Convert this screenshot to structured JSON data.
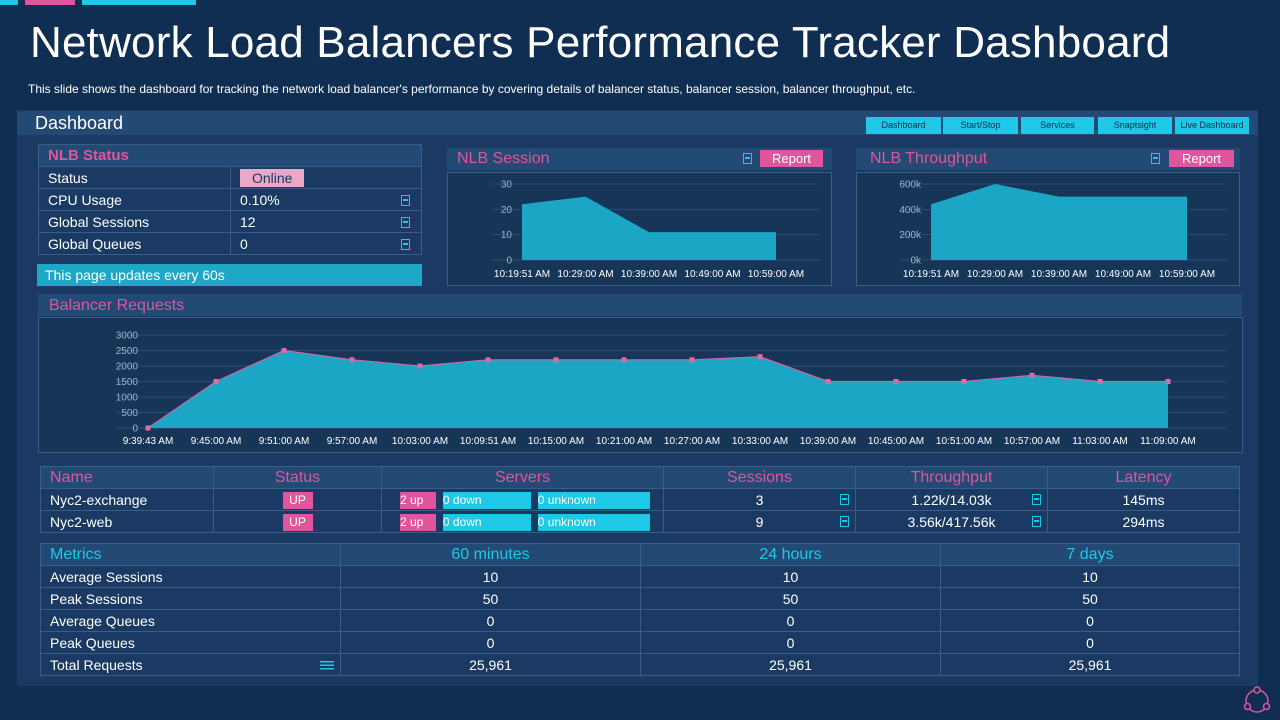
{
  "title": "Network Load Balancers Performance Tracker Dashboard",
  "subtitle": "This slide shows the dashboard for tracking the network load balancer's performance  by covering details of balancer status, balancer session, balancer throughput, etc.",
  "colors": {
    "background": "#0f2e52",
    "panel": "#1a3a63",
    "header": "#234a75",
    "accent_pink": "#e0559b",
    "accent_cyan": "#1ec8e6",
    "chart_fill": "#1aa6c4"
  },
  "dashboard": {
    "title": "Dashboard",
    "nav": [
      "Dashboard",
      "Start/Stop",
      "Services",
      "Snaptsight",
      "Live Dashboard"
    ]
  },
  "nlb_status": {
    "title": "NLB Status",
    "rows": [
      {
        "label": "Status",
        "value": "Online"
      },
      {
        "label": "CPU Usage",
        "value": "0.10%"
      },
      {
        "label": "Global Sessions",
        "value": "12"
      },
      {
        "label": "Global Queues",
        "value": "0"
      }
    ],
    "update_note": "This page updates every 60s"
  },
  "nlb_session": {
    "title": "NLB Session",
    "report_label": "Report"
  },
  "nlb_throughput": {
    "title": "NLB Throughput",
    "report_label": "Report"
  },
  "balancer_requests": {
    "title": "Balancer Requests"
  },
  "servers": {
    "headers": [
      "Name",
      "Status",
      "Servers",
      "Sessions",
      "Throughput",
      "Latency"
    ],
    "rows": [
      {
        "name": "Nyc2-exchange",
        "status": "UP",
        "up": "2 up",
        "down": "0 down",
        "unknown": "0 unknown",
        "sessions": "3",
        "throughput": "1.22k/14.03k",
        "latency": "145ms"
      },
      {
        "name": "Nyc2-web",
        "status": "UP",
        "up": "2 up",
        "down": "0 down",
        "unknown": "0 unknown",
        "sessions": "9",
        "throughput": "3.56k/417.56k",
        "latency": "294ms"
      }
    ]
  },
  "metrics": {
    "headers": [
      "Metrics",
      "60 minutes",
      "24 hours",
      "7 days"
    ],
    "rows": [
      {
        "label": "Average Sessions",
        "values": [
          "10",
          "10",
          "10"
        ]
      },
      {
        "label": "Peak Sessions",
        "values": [
          "50",
          "50",
          "50"
        ]
      },
      {
        "label": "Average Queues",
        "values": [
          "0",
          "0",
          "0"
        ]
      },
      {
        "label": "Peak Queues",
        "values": [
          "0",
          "0",
          "0"
        ]
      },
      {
        "label": "Total Requests",
        "values": [
          "25,961",
          "25,961",
          "25,961"
        ]
      }
    ]
  },
  "chart_data": [
    {
      "type": "area",
      "title": "NLB Session",
      "x": [
        "10:19:51 AM",
        "10:29:00 AM",
        "10:39:00 AM",
        "10:49:00 AM",
        "10:59:00 AM"
      ],
      "values": [
        22,
        25,
        11,
        11,
        11
      ],
      "ylim": [
        0,
        30
      ],
      "yticks": [
        "0",
        "10",
        "20",
        "30"
      ]
    },
    {
      "type": "area",
      "title": "NLB Throughput",
      "x": [
        "10:19:51 AM",
        "10:29:00 AM",
        "10:39:00 AM",
        "10:49:00 AM",
        "10:59:00 AM"
      ],
      "values": [
        440000,
        600000,
        500000,
        500000,
        500000
      ],
      "ylim": [
        0,
        600000
      ],
      "yticks": [
        "0k",
        "200k",
        "400k",
        "600k"
      ]
    },
    {
      "type": "area",
      "title": "Balancer Requests",
      "x": [
        "9:39:43 AM",
        "9:45:00 AM",
        "9:51:00 AM",
        "9:57:00 AM",
        "10:03:00 AM",
        "10:09:51 AM",
        "10:15:00 AM",
        "10:21:00 AM",
        "10:27:00 AM",
        "10:33:00 AM",
        "10:39:00 AM",
        "10:45:00 AM",
        "10:51:00 AM",
        "10:57:00 AM",
        "11:03:00 AM",
        "11:09:00 AM"
      ],
      "values": [
        0,
        1500,
        2500,
        2200,
        2000,
        2200,
        2200,
        2200,
        2200,
        2300,
        1500,
        1500,
        1500,
        1700,
        1500,
        1500
      ],
      "ylim": [
        0,
        3000
      ],
      "yticks": [
        "0",
        "500",
        "1000",
        "1500",
        "2000",
        "2500",
        "3000"
      ]
    }
  ]
}
